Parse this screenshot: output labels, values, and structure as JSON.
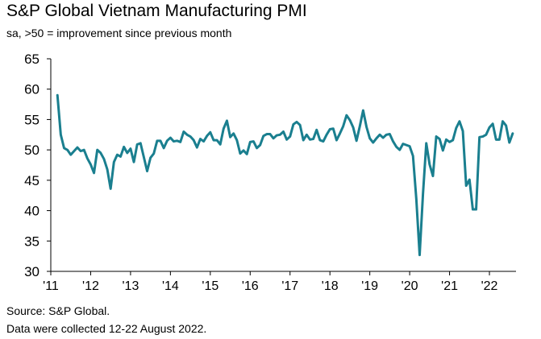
{
  "title": "S&P Global Vietnam Manufacturing PMI",
  "subtitle": "sa, >50 = improvement since previous month",
  "footnote": {
    "source": "Source: S&P Global.",
    "collection": "Data were collected 12-22 August 2022."
  },
  "chart_data": {
    "type": "line",
    "title": "S&P Global Vietnam Manufacturing PMI",
    "subtitle": "sa, >50 = improvement since previous month",
    "xlabel": "",
    "ylabel": "",
    "ylim": [
      30,
      65
    ],
    "yticks": [
      30,
      35,
      40,
      45,
      50,
      55,
      60,
      65
    ],
    "xlim": [
      "2011-01",
      "2022-09"
    ],
    "xticks": [
      {
        "label": "'11",
        "date": "2011-01"
      },
      {
        "label": "'12",
        "date": "2012-01"
      },
      {
        "label": "'13",
        "date": "2013-01"
      },
      {
        "label": "'14",
        "date": "2014-01"
      },
      {
        "label": "'15",
        "date": "2015-01"
      },
      {
        "label": "'16",
        "date": "2016-01"
      },
      {
        "label": "'17",
        "date": "2017-01"
      },
      {
        "label": "'18",
        "date": "2018-01"
      },
      {
        "label": "'19",
        "date": "2019-01"
      },
      {
        "label": "'20",
        "date": "2020-01"
      },
      {
        "label": "'21",
        "date": "2021-01"
      },
      {
        "label": "'22",
        "date": "2022-01"
      }
    ],
    "grid": false,
    "line_color": "#1a7f8f",
    "series": [
      {
        "points": [
          [
            "2011-03",
            59.0
          ],
          [
            "2011-04",
            52.5
          ],
          [
            "2011-05",
            50.3
          ],
          [
            "2011-06",
            50.0
          ],
          [
            "2011-07",
            49.2
          ],
          [
            "2011-08",
            49.8
          ],
          [
            "2011-09",
            50.4
          ],
          [
            "2011-10",
            49.8
          ],
          [
            "2011-11",
            50.0
          ],
          [
            "2011-12",
            48.6
          ],
          [
            "2012-01",
            47.6
          ],
          [
            "2012-02",
            46.2
          ],
          [
            "2012-03",
            50.0
          ],
          [
            "2012-04",
            49.5
          ],
          [
            "2012-05",
            48.5
          ],
          [
            "2012-06",
            46.8
          ],
          [
            "2012-07",
            43.6
          ],
          [
            "2012-08",
            48.0
          ],
          [
            "2012-09",
            49.2
          ],
          [
            "2012-10",
            48.9
          ],
          [
            "2012-11",
            50.5
          ],
          [
            "2012-12",
            49.5
          ],
          [
            "2013-01",
            50.2
          ],
          [
            "2013-02",
            48.0
          ],
          [
            "2013-03",
            50.9
          ],
          [
            "2013-04",
            51.1
          ],
          [
            "2013-05",
            48.8
          ],
          [
            "2013-06",
            46.5
          ],
          [
            "2013-07",
            48.7
          ],
          [
            "2013-08",
            49.4
          ],
          [
            "2013-09",
            51.5
          ],
          [
            "2013-10",
            51.5
          ],
          [
            "2013-11",
            50.3
          ],
          [
            "2013-12",
            51.5
          ],
          [
            "2014-01",
            52.0
          ],
          [
            "2014-02",
            51.4
          ],
          [
            "2014-03",
            51.5
          ],
          [
            "2014-04",
            51.3
          ],
          [
            "2014-05",
            53.0
          ],
          [
            "2014-06",
            52.5
          ],
          [
            "2014-07",
            52.2
          ],
          [
            "2014-08",
            51.6
          ],
          [
            "2014-09",
            50.4
          ],
          [
            "2014-10",
            51.8
          ],
          [
            "2014-11",
            51.4
          ],
          [
            "2014-12",
            52.3
          ],
          [
            "2015-01",
            52.9
          ],
          [
            "2015-02",
            51.6
          ],
          [
            "2015-03",
            51.6
          ],
          [
            "2015-04",
            50.9
          ],
          [
            "2015-05",
            53.5
          ],
          [
            "2015-06",
            54.8
          ],
          [
            "2015-07",
            52.1
          ],
          [
            "2015-08",
            52.7
          ],
          [
            "2015-09",
            51.6
          ],
          [
            "2015-10",
            49.4
          ],
          [
            "2015-11",
            49.9
          ],
          [
            "2015-12",
            49.3
          ],
          [
            "2016-01",
            51.3
          ],
          [
            "2016-02",
            51.4
          ],
          [
            "2016-03",
            50.3
          ],
          [
            "2016-04",
            50.8
          ],
          [
            "2016-05",
            52.3
          ],
          [
            "2016-06",
            52.6
          ],
          [
            "2016-07",
            52.6
          ],
          [
            "2016-08",
            51.9
          ],
          [
            "2016-09",
            52.4
          ],
          [
            "2016-10",
            52.5
          ],
          [
            "2016-11",
            53.0
          ],
          [
            "2016-12",
            51.7
          ],
          [
            "2017-01",
            52.2
          ],
          [
            "2017-02",
            54.2
          ],
          [
            "2017-03",
            54.6
          ],
          [
            "2017-04",
            54.1
          ],
          [
            "2017-05",
            51.6
          ],
          [
            "2017-06",
            52.5
          ],
          [
            "2017-07",
            51.7
          ],
          [
            "2017-08",
            51.8
          ],
          [
            "2017-09",
            53.3
          ],
          [
            "2017-10",
            51.6
          ],
          [
            "2017-11",
            51.4
          ],
          [
            "2017-12",
            52.5
          ],
          [
            "2018-01",
            53.4
          ],
          [
            "2018-02",
            53.5
          ],
          [
            "2018-03",
            51.6
          ],
          [
            "2018-04",
            52.7
          ],
          [
            "2018-05",
            53.9
          ],
          [
            "2018-06",
            55.7
          ],
          [
            "2018-07",
            54.9
          ],
          [
            "2018-08",
            53.7
          ],
          [
            "2018-09",
            51.5
          ],
          [
            "2018-10",
            53.9
          ],
          [
            "2018-11",
            56.5
          ],
          [
            "2018-12",
            53.8
          ],
          [
            "2019-01",
            51.9
          ],
          [
            "2019-02",
            51.2
          ],
          [
            "2019-03",
            51.9
          ],
          [
            "2019-04",
            52.5
          ],
          [
            "2019-05",
            52.0
          ],
          [
            "2019-06",
            52.5
          ],
          [
            "2019-07",
            52.6
          ],
          [
            "2019-08",
            51.4
          ],
          [
            "2019-09",
            50.5
          ],
          [
            "2019-10",
            50.0
          ],
          [
            "2019-11",
            51.0
          ],
          [
            "2019-12",
            50.8
          ],
          [
            "2020-01",
            50.6
          ],
          [
            "2020-02",
            49.0
          ],
          [
            "2020-03",
            41.9
          ],
          [
            "2020-04",
            32.7
          ],
          [
            "2020-05",
            42.7
          ],
          [
            "2020-06",
            51.1
          ],
          [
            "2020-07",
            47.6
          ],
          [
            "2020-08",
            45.7
          ],
          [
            "2020-09",
            52.2
          ],
          [
            "2020-10",
            51.8
          ],
          [
            "2020-11",
            49.9
          ],
          [
            "2020-12",
            51.7
          ],
          [
            "2021-01",
            51.3
          ],
          [
            "2021-02",
            51.6
          ],
          [
            "2021-03",
            53.6
          ],
          [
            "2021-04",
            54.7
          ],
          [
            "2021-05",
            53.1
          ],
          [
            "2021-06",
            44.1
          ],
          [
            "2021-07",
            45.1
          ],
          [
            "2021-08",
            40.2
          ],
          [
            "2021-09",
            40.2
          ],
          [
            "2021-10",
            52.1
          ],
          [
            "2021-11",
            52.2
          ],
          [
            "2021-12",
            52.5
          ],
          [
            "2022-01",
            53.7
          ],
          [
            "2022-02",
            54.3
          ],
          [
            "2022-03",
            51.7
          ],
          [
            "2022-04",
            51.7
          ],
          [
            "2022-05",
            54.7
          ],
          [
            "2022-06",
            54.0
          ],
          [
            "2022-07",
            51.2
          ],
          [
            "2022-08",
            52.7
          ]
        ]
      }
    ]
  }
}
